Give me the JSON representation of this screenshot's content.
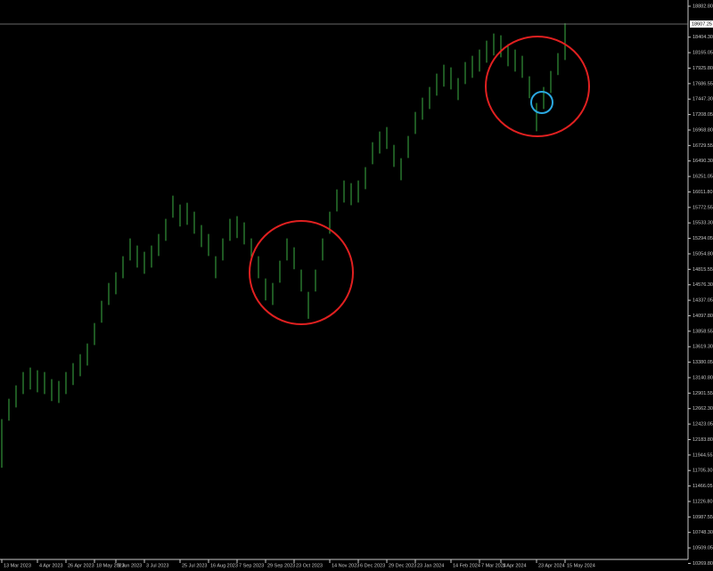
{
  "chart_data": {
    "type": "ohlc",
    "color": "#3cb043",
    "xlim": [
      0,
      96
    ],
    "ylim": [
      10152,
      18979
    ],
    "high": [
      12500,
      12815,
      13021,
      13228,
      13297,
      13255,
      13228,
      13118,
      13090,
      13228,
      13366,
      13503,
      13668,
      13985,
      14330,
      14605,
      14770,
      15018,
      15293,
      15183,
      15087,
      15183,
      15362,
      15596,
      15954,
      15817,
      15844,
      15706,
      15500,
      15362,
      15018,
      15293,
      15596,
      15638,
      15541,
      15293,
      15018,
      14674,
      14605,
      14949,
      15293,
      15156,
      14812,
      14467,
      14812,
      15293,
      15706,
      16051,
      16188,
      16147,
      16188,
      16395,
      16780,
      16946,
      17015,
      16739,
      16533,
      16877,
      17249,
      17469,
      17634,
      17841,
      17979,
      17937,
      17772,
      18020,
      18116,
      18213,
      18350,
      18461,
      18433,
      18295,
      18213,
      18116,
      17800,
      17386,
      17634,
      17882,
      18158,
      18620
    ],
    "low": [
      11750,
      12475,
      12681,
      12888,
      12957,
      12915,
      12888,
      12778,
      12750,
      12888,
      13026,
      13163,
      13328,
      13645,
      13990,
      14265,
      14430,
      14678,
      14953,
      14843,
      14747,
      14843,
      15022,
      15256,
      15614,
      15477,
      15504,
      15366,
      15160,
      15022,
      14678,
      14953,
      15256,
      15298,
      15201,
      14953,
      14678,
      14334,
      14265,
      14609,
      14953,
      14816,
      14472,
      14050,
      14472,
      14953,
      15366,
      15711,
      15848,
      15807,
      15848,
      16055,
      16440,
      16606,
      16675,
      16399,
      16193,
      16537,
      16909,
      17129,
      17294,
      17501,
      17639,
      17597,
      17432,
      17680,
      17776,
      17873,
      18010,
      18121,
      18093,
      17955,
      17873,
      17776,
      17460,
      16950,
      17294,
      17542,
      17818,
      18052
    ],
    "yticks": [
      {
        "value": 18882.8,
        "label": "18882.80"
      },
      {
        "value": 18404.3,
        "label": "18404.30"
      },
      {
        "value": 18165.05,
        "label": "18165.05"
      },
      {
        "value": 17925.8,
        "label": "17925.80"
      },
      {
        "value": 17686.55,
        "label": "17686.55"
      },
      {
        "value": 17447.3,
        "label": "17447.30"
      },
      {
        "value": 17208.05,
        "label": "17208.05"
      },
      {
        "value": 16968.8,
        "label": "16968.80"
      },
      {
        "value": 16729.55,
        "label": "16729.55"
      },
      {
        "value": 16490.3,
        "label": "16490.30"
      },
      {
        "value": 16251.05,
        "label": "16251.05"
      },
      {
        "value": 16011.8,
        "label": "16011.80"
      },
      {
        "value": 15772.55,
        "label": "15772.55"
      },
      {
        "value": 15533.3,
        "label": "15533.30"
      },
      {
        "value": 15294.05,
        "label": "15294.05"
      },
      {
        "value": 15054.8,
        "label": "15054.80"
      },
      {
        "value": 14815.55,
        "label": "14815.55"
      },
      {
        "value": 14576.3,
        "label": "14576.30"
      },
      {
        "value": 14337.05,
        "label": "14337.05"
      },
      {
        "value": 14097.8,
        "label": "14097.80"
      },
      {
        "value": 13858.55,
        "label": "13858.55"
      },
      {
        "value": 13619.3,
        "label": "13619.30"
      },
      {
        "value": 13380.05,
        "label": "13380.05"
      },
      {
        "value": 13140.8,
        "label": "13140.80"
      },
      {
        "value": 12901.55,
        "label": "12901.55"
      },
      {
        "value": 12662.3,
        "label": "12662.30"
      },
      {
        "value": 12423.05,
        "label": "12423.05"
      },
      {
        "value": 12183.8,
        "label": "12183.80"
      },
      {
        "value": 11944.55,
        "label": "11944.55"
      },
      {
        "value": 11705.3,
        "label": "11705.30"
      },
      {
        "value": 11466.05,
        "label": "11466.05"
      },
      {
        "value": 11226.8,
        "label": "11226.80"
      },
      {
        "value": 10987.55,
        "label": "10987.55"
      },
      {
        "value": 10748.3,
        "label": "10748.30"
      },
      {
        "value": 10509.05,
        "label": "10509.05"
      },
      {
        "value": 10269.8,
        "label": "10269.80"
      }
    ],
    "xticks": [
      {
        "value": 0,
        "label": "13 Mar 2023"
      },
      {
        "value": 5,
        "label": "4 Apr 2023"
      },
      {
        "value": 9,
        "label": "26 Apr 2023"
      },
      {
        "value": 13,
        "label": "18 May 2023"
      },
      {
        "value": 16,
        "label": "9 Jun 2023"
      },
      {
        "value": 20,
        "label": "3 Jul 2023"
      },
      {
        "value": 25,
        "label": "25 Jul 2023"
      },
      {
        "value": 29,
        "label": "16 Aug 2023"
      },
      {
        "value": 33,
        "label": "7 Sep 2023"
      },
      {
        "value": 37,
        "label": "29 Sep 2023"
      },
      {
        "value": 41,
        "label": "23 Oct 2023"
      },
      {
        "value": 46,
        "label": "14 Nov 2023"
      },
      {
        "value": 50,
        "label": "6 Dec 2023"
      },
      {
        "value": 54,
        "label": "29 Dec 2023"
      },
      {
        "value": 58,
        "label": "23 Jan 2024"
      },
      {
        "value": 63,
        "label": "14 Feb 2024"
      },
      {
        "value": 67,
        "label": "7 Mar 2024"
      },
      {
        "value": 70,
        "label": "1 Apr 2024"
      },
      {
        "value": 75,
        "label": "23 Apr 2024"
      },
      {
        "value": 79,
        "label": "15 May 2024"
      }
    ],
    "price_line": {
      "value": 18607.25,
      "label": "18607.25"
    }
  }
}
